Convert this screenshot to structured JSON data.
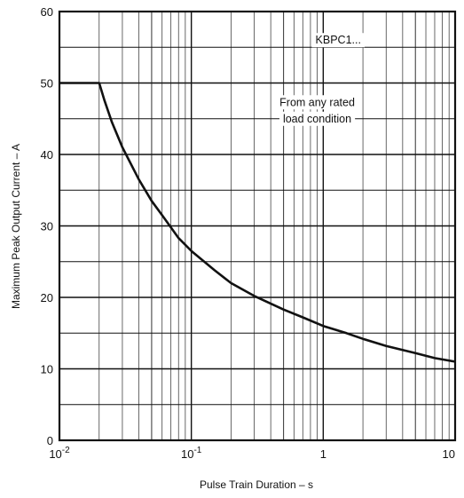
{
  "chart_data": {
    "type": "line",
    "title": "",
    "xlabel": "Pulse Train Duration – s",
    "ylabel": "Maximum Peak Output Current – A",
    "x_scale": "log",
    "xlim": [
      0.01,
      10
    ],
    "ylim": [
      0,
      60
    ],
    "x_ticks": [
      {
        "value": 0.01,
        "mantissa": "10",
        "exponent": "-2"
      },
      {
        "value": 0.1,
        "mantissa": "10",
        "exponent": "-1"
      },
      {
        "value": 1,
        "mantissa": "1",
        "exponent": ""
      },
      {
        "value": 10,
        "mantissa": "10",
        "exponent": ""
      }
    ],
    "y_ticks": [
      "0",
      "10",
      "20",
      "30",
      "40",
      "50",
      "60"
    ],
    "grid": true,
    "series": [
      {
        "x": [
          0.01,
          0.02,
          0.022,
          0.025,
          0.03,
          0.04,
          0.05,
          0.06,
          0.07,
          0.08,
          0.1,
          0.15,
          0.2,
          0.3,
          0.5,
          0.7,
          1,
          1.5,
          2,
          3,
          5,
          7,
          10
        ],
        "y": [
          50,
          50,
          47.5,
          44.5,
          41,
          36.5,
          33.5,
          31.5,
          29.8,
          28.3,
          26.5,
          23.8,
          22,
          20.2,
          18.3,
          17.2,
          16,
          15,
          14.2,
          13.2,
          12.2,
          11.5,
          11
        ]
      }
    ],
    "annotations": [
      {
        "text": "KBPC1...",
        "x": 1.3,
        "y": 55.5
      },
      {
        "text": "From any rated",
        "x": 0.9,
        "y": 46.8
      },
      {
        "text": "load condition",
        "x": 0.9,
        "y": 44.5
      }
    ]
  }
}
